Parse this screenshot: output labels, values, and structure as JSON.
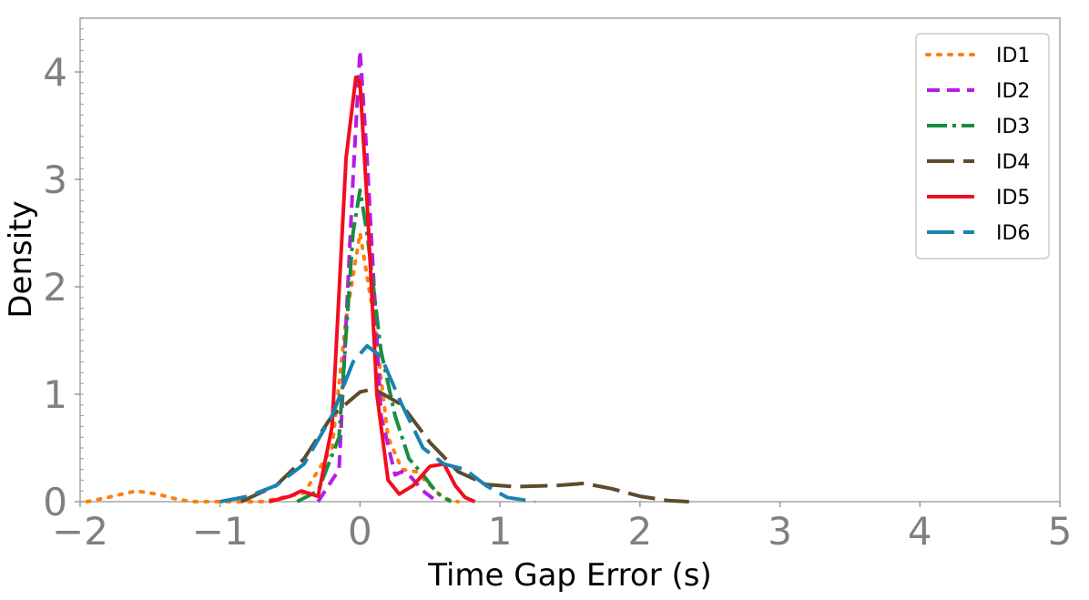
{
  "chart_data": {
    "type": "line",
    "title": "",
    "xlabel": "Time Gap Error (s)",
    "ylabel": "Density",
    "xlim": [
      -2,
      5
    ],
    "ylim": [
      0,
      4.5
    ],
    "xticks": [
      -2,
      -1,
      0,
      1,
      2,
      3,
      4,
      5
    ],
    "xtick_labels": [
      "−2",
      "−1",
      "0",
      "1",
      "2",
      "3",
      "4",
      "5"
    ],
    "yticks": [
      0,
      1,
      2,
      3,
      4
    ],
    "ytick_labels": [
      "0",
      "1",
      "2",
      "3",
      "4"
    ],
    "grid": false,
    "legend_position": "top-right",
    "series": [
      {
        "name": "ID1",
        "color": "#ff7f0e",
        "dash": "dotted",
        "x": [
          -1.95,
          -1.8,
          -1.6,
          -1.45,
          -1.3,
          -1.2,
          -1.0,
          -0.7,
          -0.4,
          -0.2,
          -0.1,
          0.0,
          0.1,
          0.2,
          0.3,
          0.4,
          0.5,
          0.6,
          0.7
        ],
        "y": [
          0.0,
          0.04,
          0.1,
          0.07,
          0.02,
          0.0,
          0.0,
          0.0,
          0.08,
          0.5,
          1.7,
          2.5,
          1.7,
          0.6,
          0.3,
          0.28,
          0.15,
          0.03,
          0.0
        ]
      },
      {
        "name": "ID2",
        "color": "#b51ce6",
        "dash": "dashed",
        "x": [
          -0.3,
          -0.15,
          -0.05,
          0.0,
          0.05,
          0.15,
          0.25,
          0.3,
          0.35,
          0.45,
          0.55
        ],
        "y": [
          0.0,
          0.3,
          3.0,
          4.2,
          3.2,
          0.8,
          0.25,
          0.28,
          0.25,
          0.1,
          0.0
        ]
      },
      {
        "name": "ID3",
        "color": "#1a8c3e",
        "dash": "dashdot",
        "x": [
          -0.45,
          -0.3,
          -0.15,
          -0.05,
          0.0,
          0.05,
          0.15,
          0.25,
          0.35,
          0.45,
          0.55,
          0.65
        ],
        "y": [
          0.0,
          0.1,
          0.6,
          2.5,
          2.9,
          2.5,
          1.4,
          0.8,
          0.4,
          0.25,
          0.08,
          0.0
        ]
      },
      {
        "name": "ID4",
        "color": "#5e4a2e",
        "dash": "longdash",
        "x": [
          -0.85,
          -0.6,
          -0.4,
          -0.2,
          0.0,
          0.1,
          0.3,
          0.5,
          0.7,
          0.9,
          1.1,
          1.4,
          1.6,
          1.8,
          2.0,
          2.2,
          2.35
        ],
        "y": [
          0.0,
          0.15,
          0.4,
          0.8,
          1.02,
          1.05,
          0.9,
          0.55,
          0.28,
          0.16,
          0.14,
          0.15,
          0.17,
          0.12,
          0.05,
          0.01,
          0.0
        ]
      },
      {
        "name": "ID5",
        "color": "#f20d20",
        "dash": "solid",
        "x": [
          -0.65,
          -0.5,
          -0.42,
          -0.3,
          -0.2,
          -0.1,
          -0.03,
          0.0,
          0.05,
          0.12,
          0.2,
          0.28,
          0.38,
          0.5,
          0.6,
          0.68,
          0.75,
          0.82
        ],
        "y": [
          0.0,
          0.05,
          0.1,
          0.05,
          0.7,
          3.2,
          3.95,
          3.9,
          2.8,
          1.0,
          0.2,
          0.07,
          0.15,
          0.33,
          0.35,
          0.15,
          0.04,
          0.0
        ]
      },
      {
        "name": "ID6",
        "color": "#1a82b0",
        "dash": "longdash",
        "x": [
          -1.0,
          -0.8,
          -0.6,
          -0.4,
          -0.2,
          -0.05,
          0.05,
          0.15,
          0.3,
          0.45,
          0.6,
          0.75,
          0.9,
          1.05,
          1.25
        ],
        "y": [
          0.0,
          0.05,
          0.15,
          0.35,
          0.8,
          1.3,
          1.45,
          1.35,
          0.9,
          0.5,
          0.35,
          0.3,
          0.15,
          0.04,
          0.0
        ]
      }
    ]
  }
}
